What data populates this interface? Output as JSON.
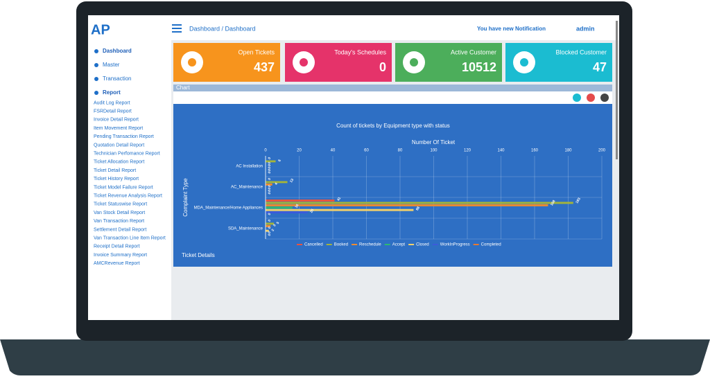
{
  "header": {
    "breadcrumb": "Dashboard  /  Dashboard",
    "notification": "You have new Notification",
    "user": "admin"
  },
  "sidebar": {
    "items": [
      "Dashboard",
      "Master",
      "Transaction",
      "Report"
    ],
    "reports": [
      "Audit Log Report",
      "FSRDetail Report",
      "Invoice Detail Report",
      "Item Movement Report",
      "Pending Transaction Report",
      "Quotation Detail Report",
      "Technician Perfomance Report",
      "Ticket Allocation Report",
      "Ticket Detail Report",
      "Ticket History Report",
      "Ticket Model Failure Report",
      "Ticket Revenue Analysis Report",
      "Ticket Statuswise Report",
      "Van Stock Detail Report",
      "Van Transaction Report",
      "Settlement Detail Report",
      "Van Transaction Line Item Report",
      "Receipt Detail Report",
      "Invoice Summary Report",
      "AMCRevenue Report"
    ]
  },
  "cards": [
    {
      "label": "Open Tickets",
      "value": 437,
      "color": "#f7941d"
    },
    {
      "label": "Today's Schedules",
      "value": 0,
      "color": "#e5336a"
    },
    {
      "label": "Active Customer",
      "value": 10512,
      "color": "#4cae5b"
    },
    {
      "label": "Blocked Customer",
      "value": 47,
      "color": "#1bbcd1"
    }
  ],
  "panel": {
    "title": "Chart",
    "footer": "Ticket Details"
  },
  "chart": {
    "type": "bar",
    "orientation": "horizontal",
    "title": "Count of tickets by  Equipment type with status",
    "x_label": "Number  Of  Ticket",
    "y_label": "Complaint  Type",
    "categories": [
      "AC Installation",
      "AC_Maintenance",
      "MDA_Maintenance/Home Appliances",
      "SDA_Maintenance"
    ],
    "series": [
      {
        "name": "Cancelled",
        "color": "#e8533f",
        "values": [
          0,
          0,
          41,
          0
        ]
      },
      {
        "name": "Booked",
        "color": "#a3b43a",
        "values": [
          6,
          13,
          183,
          5
        ]
      },
      {
        "name": "Reschedule",
        "color": "#f08a2e",
        "values": [
          0,
          4,
          168,
          3
        ]
      },
      {
        "name": "Accept",
        "color": "#2eb872",
        "values": [
          0,
          0,
          16,
          0
        ]
      },
      {
        "name": "Closed",
        "color": "#f2d16b",
        "values": [
          0,
          0,
          88,
          2
        ]
      },
      {
        "name": "WorkInProgress",
        "color": "#3b5bdb",
        "values": [
          0,
          0,
          25,
          0
        ]
      },
      {
        "name": "Completed",
        "color": "#e8782e",
        "values": [
          0,
          0,
          0,
          0
        ]
      }
    ],
    "xlim": [
      0,
      200
    ],
    "xticks": [
      0,
      20,
      40,
      60,
      80,
      100,
      120,
      140,
      160,
      180,
      200
    ],
    "grid": true
  }
}
